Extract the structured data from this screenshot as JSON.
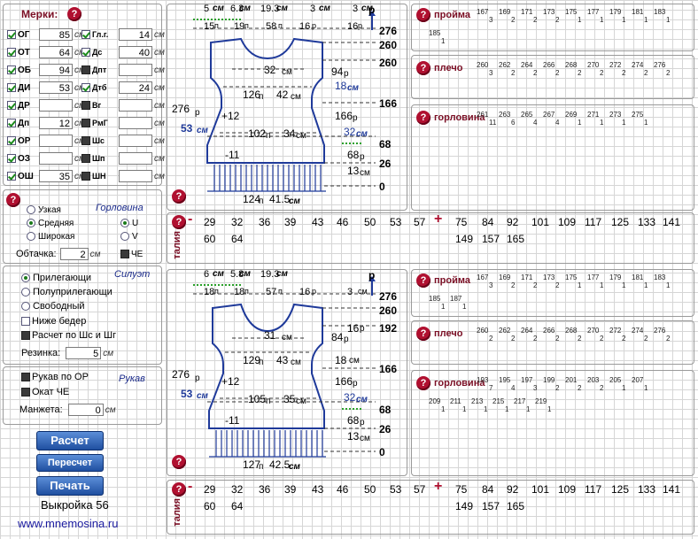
{
  "merki": {
    "title": "Мерки:",
    "unit": "см",
    "left": [
      {
        "code": "ОГ",
        "value": "85",
        "on": true
      },
      {
        "code": "ОТ",
        "value": "64",
        "on": true
      },
      {
        "code": "ОБ",
        "value": "94",
        "on": true
      },
      {
        "code": "ДИ",
        "value": "53",
        "on": true
      },
      {
        "code": "ДР",
        "value": "",
        "on": true
      },
      {
        "code": "Дп",
        "value": "12",
        "on": true
      },
      {
        "code": "ОР",
        "value": "",
        "on": true
      },
      {
        "code": "ОЗ",
        "value": "",
        "on": true
      },
      {
        "code": "ОШ",
        "value": "35",
        "on": true
      }
    ],
    "right": [
      {
        "code": "Гл.г.",
        "value": "14",
        "on": true
      },
      {
        "code": "Дс",
        "value": "40",
        "on": true
      },
      {
        "code": "Дпт",
        "value": "",
        "on": false
      },
      {
        "code": "Дтб",
        "value": "24",
        "on": true
      },
      {
        "code": "Вг",
        "value": "",
        "on": false
      },
      {
        "code": "РмГ",
        "value": "",
        "on": false
      },
      {
        "code": "Шс",
        "value": "",
        "on": false
      },
      {
        "code": "Шп",
        "value": "",
        "on": false
      },
      {
        "code": "ШН",
        "value": "",
        "on": false
      }
    ]
  },
  "neck": {
    "title": "Горловина",
    "options": [
      "Узкая",
      "Средняя",
      "Широкая"
    ],
    "selected": 1,
    "shape_u": "U",
    "shape_v": "V",
    "che": "ЧЕ",
    "obtachka_label": "Обтачка:",
    "obtachka_value": "2",
    "unit": "см"
  },
  "silhouette": {
    "title": "Силуэт",
    "options": [
      "Прилегающи",
      "Полуприлегающи",
      "Свободный"
    ],
    "selected": 0,
    "below_hips": "Ниже бедер",
    "calc_by": "Расчет по Шс и Шг",
    "rezinka_label": "Резинка:",
    "rezinka_value": "5",
    "unit": "см"
  },
  "sleeve": {
    "title": "Рукав",
    "opt1": "Рукав по ОР",
    "opt2": "Окат ЧЕ",
    "manzheta_label": "Манжета:",
    "manzheta_value": "0",
    "unit": "см"
  },
  "buttons": {
    "calc": "Расчет",
    "recalc": "Пересчет",
    "print": "Печать"
  },
  "footer": {
    "pattern": "Выкройка 56",
    "url": "www.mnemosina.ru"
  },
  "diagram1": {
    "top": [
      "5",
      "см",
      "6.3",
      "см",
      "19.3",
      "см",
      "3",
      "см",
      "3",
      "см"
    ],
    "r_label": "р",
    "row2": [
      "15",
      "п",
      "19",
      "п",
      "58",
      "п",
      "16",
      "р",
      "16",
      "р"
    ],
    "right_scale": [
      "276",
      "260",
      "260",
      "166",
      "68",
      "26",
      "0"
    ],
    "inner": {
      "a": "32",
      "a_u": "см",
      "b": "94",
      "b_u": "р",
      "c": "18",
      "c_u": "см",
      "d": "126",
      "d_u": "п",
      "e": "42",
      "e_u": "см",
      "f": "+12",
      "g": "102",
      "g_u": "п",
      "h": "34",
      "h_u": "см",
      "i": "166",
      "i_u": "р",
      "j": "32",
      "j_u": "см",
      "k": "-11",
      "l": "68",
      "l_u": "р",
      "m": "13",
      "m_u": "см",
      "n": "124",
      "n_u": "п",
      "o": "41.5",
      "o_u": "см"
    },
    "left": [
      "276",
      "р",
      "53",
      "см"
    ]
  },
  "diagram2": {
    "top": [
      "6",
      "см",
      "5.8",
      "см",
      "19.3",
      "см"
    ],
    "r_label": "р",
    "row2": [
      "18",
      "п",
      "18",
      "п",
      "57",
      "п",
      "16",
      "р",
      "3",
      "см"
    ],
    "right_scale": [
      "276",
      "260",
      "192",
      "166",
      "68",
      "26",
      "0"
    ],
    "inner": {
      "a": "31",
      "a_u": "см",
      "b": "84",
      "b_u": "р",
      "c": "16",
      "c_u": "р",
      "c2": "18",
      "c2_u": "см",
      "d": "129",
      "d_u": "п",
      "e": "43",
      "e_u": "см",
      "f": "+12",
      "g": "105",
      "g_u": "п",
      "h": "35",
      "h_u": "см",
      "i": "166",
      "i_u": "р",
      "j": "32",
      "j_u": "см",
      "k": "-11",
      "l": "68",
      "l_u": "р",
      "m": "13",
      "m_u": "см",
      "n": "127",
      "n_u": "п",
      "o": "42.5",
      "o_u": "см"
    },
    "left": [
      "276",
      "р",
      "53",
      "см"
    ]
  },
  "right_panels": {
    "p1": {
      "proyma": {
        "label": "пройма",
        "vals": [
          "167",
          "3",
          "169",
          "2",
          "171",
          "2",
          "173",
          "2",
          "175",
          "1",
          "177",
          "1",
          "179",
          "1",
          "181",
          "1",
          "183",
          "1"
        ],
        "row2": [
          "185",
          "1"
        ]
      },
      "plecho": {
        "label": "плечо",
        "vals": [
          "260",
          "3",
          "262",
          "2",
          "264",
          "2",
          "266",
          "2",
          "268",
          "2",
          "270",
          "2",
          "272",
          "2",
          "274",
          "2",
          "276",
          "2"
        ]
      },
      "gorlovina": {
        "label": "горловина",
        "vals": [
          "261",
          "11",
          "263",
          "6",
          "265",
          "4",
          "267",
          "4",
          "269",
          "1",
          "271",
          "1",
          "273",
          "1",
          "275",
          "1"
        ]
      }
    },
    "p2": {
      "proyma": {
        "label": "пройма",
        "vals": [
          "167",
          "3",
          "169",
          "2",
          "171",
          "2",
          "173",
          "2",
          "175",
          "1",
          "177",
          "1",
          "179",
          "1",
          "181",
          "1",
          "183",
          "1"
        ],
        "row2": [
          "185",
          "1",
          "187",
          "1"
        ]
      },
      "plecho": {
        "label": "плечо",
        "vals": [
          "260",
          "2",
          "262",
          "2",
          "264",
          "2",
          "266",
          "2",
          "268",
          "2",
          "270",
          "2",
          "272",
          "2",
          "274",
          "2",
          "276",
          "2"
        ]
      },
      "gorlovina": {
        "label": "горловина",
        "vals": [
          "193",
          "7",
          "195",
          "4",
          "197",
          "3",
          "199",
          "2",
          "201",
          "2",
          "203",
          "2",
          "205",
          "1",
          "207",
          "1"
        ],
        "row2": [
          "209",
          "1",
          "211",
          "1",
          "213",
          "1",
          "215",
          "1",
          "217",
          "1",
          "219",
          "1"
        ]
      }
    }
  },
  "talia": {
    "label": "талия",
    "minus": "-",
    "plus": "+",
    "minus_vals": [
      "29",
      "32",
      "36",
      "39",
      "43",
      "46",
      "50",
      "53",
      "57"
    ],
    "minus_row2": [
      "60",
      "64"
    ],
    "plus_vals": [
      "75",
      "84",
      "92",
      "101",
      "109",
      "117",
      "125",
      "133",
      "141"
    ],
    "plus_row2": [
      "149",
      "157",
      "165"
    ]
  },
  "colors": {
    "accent": "#1f3a9a",
    "label_red": "#7a0e24",
    "q_red": "#b01030",
    "dash_green": "#2aa02a"
  }
}
